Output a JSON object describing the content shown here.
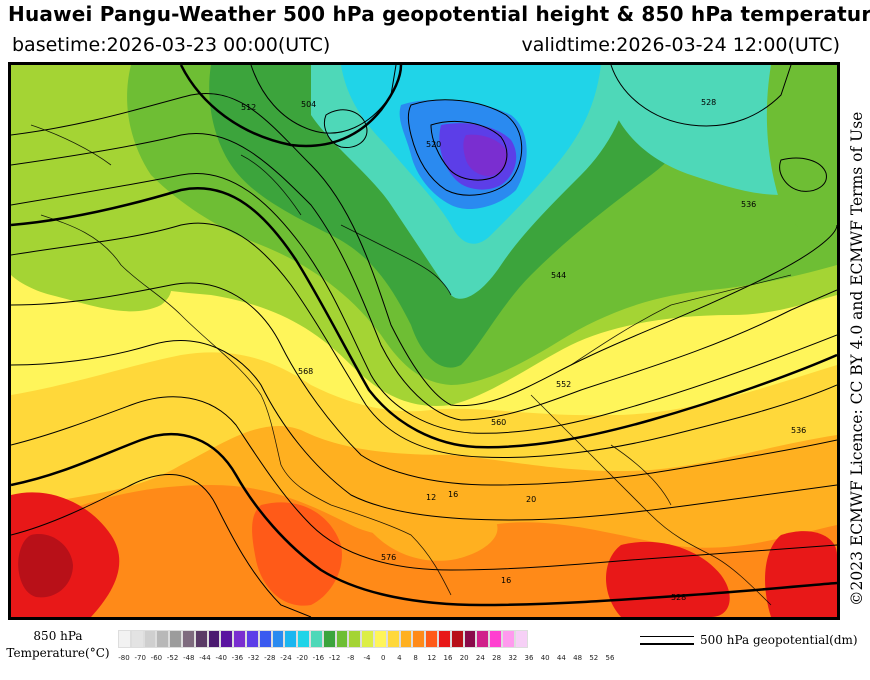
{
  "header": {
    "title": "Huawei Pangu-Weather 500 hPa geopotential height & 850 hPa temperature",
    "basetime": "basetime:2026-03-23 00:00(UTC)",
    "validtime": "validtime:2026-03-24 12:00(UTC)"
  },
  "license": "©2023 ECMWF Licence: CC BY 4.0 and ECMWF Terms of Use",
  "legend": {
    "temperature_label_line1": "850 hPa",
    "temperature_label_line2": "Temperature(°C)",
    "contour_label": "500 hPa geopotential(dm)",
    "ticks": [
      "-80",
      "-70",
      "-60",
      "-52",
      "-48",
      "-44",
      "-40",
      "-36",
      "-32",
      "-28",
      "-24",
      "-20",
      "-16",
      "-12",
      "-8",
      "-4",
      "0",
      "4",
      "8",
      "12",
      "16",
      "20",
      "24",
      "28",
      "32",
      "36",
      "40",
      "44",
      "48",
      "52",
      "56"
    ],
    "colors": [
      "#f2f2f2",
      "#e3e3e3",
      "#cfcfcf",
      "#b8b8b8",
      "#9c9c9c",
      "#7e6b7e",
      "#5a3a66",
      "#4b1a70",
      "#5a14a0",
      "#7a2ed0",
      "#5c3ee8",
      "#3a5af0",
      "#2a8af0",
      "#1ab6f0",
      "#20d4e8",
      "#4ed8b8",
      "#3ca43c",
      "#6ebe34",
      "#a4d434",
      "#dcee46",
      "#fff55a",
      "#ffd83a",
      "#ffb020",
      "#ff8a18",
      "#ff5a18",
      "#e81818",
      "#b81018",
      "#8a0a4a",
      "#d0208a",
      "#ff40d0",
      "#ff9aee",
      "#f6d0f6"
    ]
  },
  "map": {
    "contour_labels": [
      {
        "text": "512"
      },
      {
        "text": "504"
      },
      {
        "text": "520"
      },
      {
        "text": "528"
      },
      {
        "text": "536"
      },
      {
        "text": "544"
      },
      {
        "text": "552"
      },
      {
        "text": "560"
      },
      {
        "text": "568"
      },
      {
        "text": "576"
      },
      {
        "text": "12"
      },
      {
        "text": "16"
      },
      {
        "text": "20"
      },
      {
        "text": "16"
      },
      {
        "text": "528"
      },
      {
        "text": "536"
      }
    ]
  }
}
